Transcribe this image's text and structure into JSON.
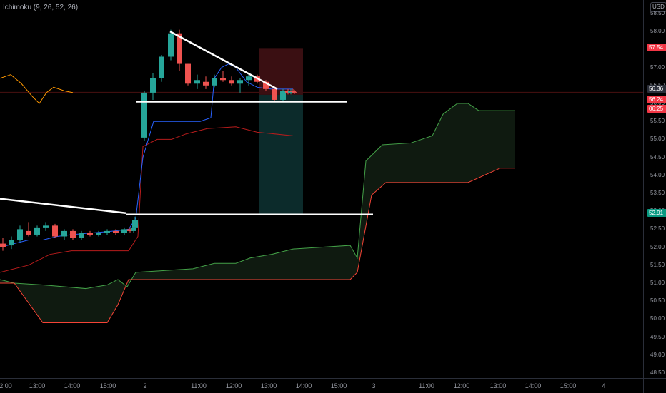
{
  "legend": {
    "text": "Ichimoku (9, 26, 52, 26)"
  },
  "currency": "USD",
  "price_axis": {
    "ticks": [
      "58.50",
      "58.00",
      "57.50",
      "57.00",
      "56.50",
      "56.00",
      "55.50",
      "55.00",
      "54.50",
      "54.00",
      "53.50",
      "53.00",
      "52.50",
      "52.00",
      "51.50",
      "51.00",
      "50.50",
      "50.00",
      "49.50",
      "49.00",
      "48.50"
    ]
  },
  "price_tags": [
    {
      "label": "57.54",
      "color": "#f23645"
    },
    {
      "label": "56.36",
      "color": "#2a2e39"
    },
    {
      "label": "56.24",
      "color": "#f23645"
    },
    {
      "label": "06:25",
      "color": "#f23645"
    },
    {
      "label": "52.91",
      "color": "#089981"
    }
  ],
  "time_axis": {
    "ticks": [
      "2:00",
      "13:00",
      "14:00",
      "15:00",
      "2",
      "11:00",
      "12:00",
      "13:00",
      "14:00",
      "15:00",
      "3",
      "11:00",
      "12:00",
      "13:00",
      "14:00",
      "15:00",
      "4"
    ]
  },
  "colors": {
    "up": "#26a69a",
    "down": "#ef5350",
    "conversion": "#2962ff",
    "base": "#b71c1c",
    "lagging": "#ff9800",
    "span_a": "#43a047",
    "span_b": "#f44336",
    "cloud": "#0f1a10",
    "stop_zone": "#3a0f12",
    "target_zone": "#0c2b2b",
    "drawing": "#ffffff",
    "price_line": "#4a1010"
  },
  "chart_data": {
    "type": "candlestick",
    "y_range": [
      48.4,
      58.7
    ],
    "candles": [
      {
        "o": 52.1,
        "h": 52.25,
        "l": 51.9,
        "c": 52.0
      },
      {
        "o": 52.05,
        "h": 52.3,
        "l": 51.95,
        "c": 52.2
      },
      {
        "o": 52.2,
        "h": 52.6,
        "l": 52.15,
        "c": 52.5
      },
      {
        "o": 52.45,
        "h": 52.7,
        "l": 52.3,
        "c": 52.35
      },
      {
        "o": 52.35,
        "h": 52.6,
        "l": 52.3,
        "c": 52.55
      },
      {
        "o": 52.55,
        "h": 52.7,
        "l": 52.45,
        "c": 52.6
      },
      {
        "o": 52.6,
        "h": 52.65,
        "l": 52.25,
        "c": 52.3
      },
      {
        "o": 52.3,
        "h": 52.5,
        "l": 52.2,
        "c": 52.45
      },
      {
        "o": 52.45,
        "h": 52.5,
        "l": 52.2,
        "c": 52.25
      },
      {
        "o": 52.25,
        "h": 52.45,
        "l": 52.2,
        "c": 52.4
      },
      {
        "o": 52.4,
        "h": 52.45,
        "l": 52.3,
        "c": 52.35
      },
      {
        "o": 52.35,
        "h": 52.45,
        "l": 52.3,
        "c": 52.4
      },
      {
        "o": 52.4,
        "h": 52.5,
        "l": 52.35,
        "c": 52.45
      },
      {
        "o": 52.45,
        "h": 52.5,
        "l": 52.35,
        "c": 52.4
      },
      {
        "o": 52.4,
        "h": 52.55,
        "l": 52.35,
        "c": 52.5
      },
      {
        "o": 52.5,
        "h": 52.55,
        "l": 52.4,
        "c": 52.45
      },
      {
        "o": 52.45,
        "h": 52.6,
        "l": 52.4,
        "c": 52.55
      },
      {
        "o": 52.55,
        "h": 52.85,
        "l": 52.5,
        "c": 52.75
      },
      {
        "o": 55.05,
        "h": 56.35,
        "l": 54.95,
        "c": 56.3
      },
      {
        "o": 56.3,
        "h": 56.85,
        "l": 56.1,
        "c": 56.7
      },
      {
        "o": 56.7,
        "h": 57.35,
        "l": 56.6,
        "c": 57.3
      },
      {
        "o": 57.3,
        "h": 58.05,
        "l": 57.2,
        "c": 57.95
      },
      {
        "o": 57.95,
        "h": 58.05,
        "l": 56.9,
        "c": 57.1
      },
      {
        "o": 57.1,
        "h": 57.1,
        "l": 56.5,
        "c": 56.55
      },
      {
        "o": 56.55,
        "h": 56.8,
        "l": 56.4,
        "c": 56.65
      },
      {
        "o": 56.6,
        "h": 56.75,
        "l": 56.4,
        "c": 56.5
      },
      {
        "o": 56.5,
        "h": 56.8,
        "l": 56.45,
        "c": 56.7
      },
      {
        "o": 56.7,
        "h": 56.9,
        "l": 56.6,
        "c": 56.65
      },
      {
        "o": 56.65,
        "h": 56.75,
        "l": 56.5,
        "c": 56.55
      },
      {
        "o": 56.55,
        "h": 56.7,
        "l": 56.3,
        "c": 56.65
      },
      {
        "o": 56.65,
        "h": 56.8,
        "l": 56.5,
        "c": 56.75
      },
      {
        "o": 56.75,
        "h": 56.8,
        "l": 56.55,
        "c": 56.6
      },
      {
        "o": 56.6,
        "h": 56.65,
        "l": 56.35,
        "c": 56.4
      },
      {
        "o": 56.4,
        "h": 56.45,
        "l": 56.05,
        "c": 56.1
      },
      {
        "o": 56.1,
        "h": 56.4,
        "l": 56.05,
        "c": 56.35
      },
      {
        "o": 56.35,
        "h": 56.4,
        "l": 56.25,
        "c": 56.3
      },
      {
        "o": 56.3,
        "h": 56.4,
        "l": 56.25,
        "c": 56.35
      },
      {
        "o": 56.35,
        "h": 56.4,
        "l": 56.3,
        "c": 56.32
      },
      {
        "o": 56.32,
        "h": 56.38,
        "l": 56.26,
        "c": 56.3
      }
    ]
  }
}
